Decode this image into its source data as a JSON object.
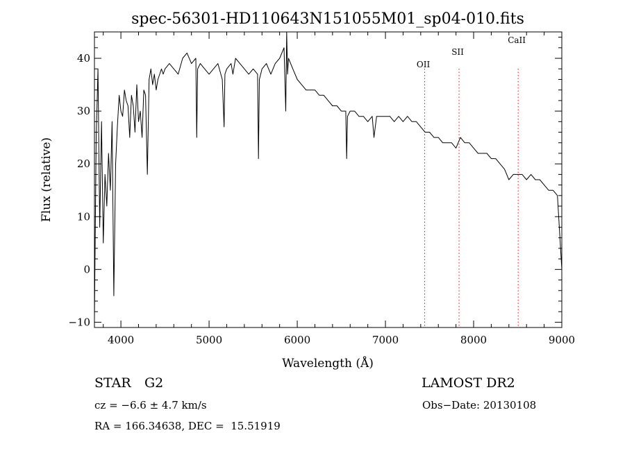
{
  "chart_data": {
    "type": "line",
    "title": "spec-56301-HD110643N151055M01_sp04-010.fits",
    "xlabel": "Wavelength (Å)",
    "ylabel": "Flux (relative)",
    "xlim": [
      3700,
      9000
    ],
    "ylim": [
      -11,
      45
    ],
    "xticks": [
      4000,
      5000,
      6000,
      7000,
      8000,
      9000
    ],
    "yticks": [
      -10,
      0,
      10,
      20,
      30,
      40
    ],
    "grid": false,
    "line_color": "#000000",
    "marker_color": "#ff0000",
    "markers": [
      {
        "label": "OII",
        "x": 7445
      },
      {
        "label": "SII",
        "x": 7835
      },
      {
        "label": "CaII",
        "x": 8505
      }
    ],
    "series": [
      {
        "x": [
          3700,
          3720,
          3740,
          3760,
          3780,
          3800,
          3820,
          3840,
          3860,
          3880,
          3900,
          3920,
          3940,
          3960,
          3980,
          4000,
          4020,
          4040,
          4060,
          4080,
          4100,
          4120,
          4140,
          4160,
          4180,
          4200,
          4220,
          4240,
          4260,
          4280,
          4300,
          4320,
          4340,
          4360,
          4380,
          4400,
          4420,
          4440,
          4460,
          4480,
          4500,
          4550,
          4600,
          4650,
          4700,
          4750,
          4800,
          4850,
          4860,
          4870,
          4900,
          4950,
          5000,
          5050,
          5100,
          5150,
          5170,
          5180,
          5200,
          5250,
          5270,
          5300,
          5350,
          5400,
          5450,
          5500,
          5550,
          5560,
          5570,
          5600,
          5650,
          5700,
          5750,
          5800,
          5850,
          5870,
          5880,
          5890,
          5900,
          5950,
          6000,
          6050,
          6100,
          6150,
          6200,
          6250,
          6300,
          6350,
          6400,
          6450,
          6500,
          6550,
          6560,
          6570,
          6600,
          6650,
          6700,
          6750,
          6800,
          6850,
          6870,
          6900,
          6950,
          7000,
          7050,
          7100,
          7150,
          7200,
          7250,
          7300,
          7350,
          7400,
          7450,
          7500,
          7550,
          7600,
          7650,
          7700,
          7750,
          7800,
          7850,
          7900,
          7950,
          8000,
          8050,
          8100,
          8150,
          8200,
          8250,
          8300,
          8350,
          8400,
          8450,
          8500,
          8550,
          8600,
          8650,
          8700,
          8750,
          8800,
          8850,
          8900,
          8950,
          9000
        ],
        "y": [
          -9,
          25,
          38,
          8,
          28,
          5,
          18,
          12,
          22,
          15,
          28,
          -5,
          20,
          27,
          33,
          30,
          29,
          34,
          32,
          31,
          25,
          33,
          31,
          26,
          35,
          28,
          30,
          25,
          34,
          33,
          18,
          36,
          38,
          35,
          37,
          34,
          36,
          37,
          38,
          37,
          38,
          39,
          38,
          37,
          40,
          41,
          39,
          40,
          25,
          38,
          39,
          38,
          37,
          38,
          39,
          36,
          27,
          37,
          38,
          39,
          37,
          40,
          39,
          38,
          37,
          38,
          37,
          21,
          36,
          38,
          39,
          37,
          39,
          40,
          42,
          30,
          45,
          37,
          40,
          38,
          36,
          35,
          34,
          34,
          34,
          33,
          33,
          32,
          31,
          31,
          30,
          30,
          21,
          29,
          30,
          30,
          29,
          29,
          28,
          29,
          25,
          29,
          29,
          29,
          29,
          28,
          29,
          28,
          29,
          28,
          28,
          27,
          26,
          26,
          25,
          25,
          24,
          24,
          24,
          23,
          25,
          24,
          24,
          23,
          22,
          22,
          22,
          21,
          21,
          20,
          19,
          17,
          18,
          18,
          18,
          17,
          18,
          17,
          17,
          16,
          15,
          15,
          14,
          0
        ]
      }
    ]
  },
  "info": {
    "class_label": "STAR",
    "subclass_label": "G2",
    "survey_label": "LAMOST DR2",
    "cz_text": "cz = −6.6 ± 4.7 km/s",
    "obs_date_text": "Obs−Date: 20130108",
    "coords_text": "RA = 166.34638, DEC =  15.51919"
  }
}
